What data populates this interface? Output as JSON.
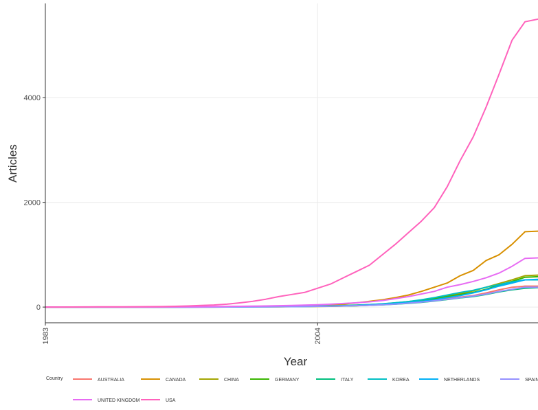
{
  "chart_data": {
    "type": "line",
    "title": "",
    "xlabel": "Year",
    "ylabel": "Articles",
    "xlim": [
      1983,
      2021
    ],
    "ylim": [
      -300,
      5800
    ],
    "x_ticks": [
      1983,
      2004
    ],
    "y_ticks": [
      0,
      2000,
      4000
    ],
    "grid": true,
    "legend_title": "Country",
    "legend_position": "bottom",
    "x": [
      1983,
      1984,
      1985,
      1986,
      1987,
      1988,
      1989,
      1990,
      1991,
      1992,
      1993,
      1994,
      1995,
      1996,
      1997,
      1998,
      1999,
      2000,
      2001,
      2002,
      2003,
      2004,
      2005,
      2006,
      2007,
      2008,
      2009,
      2010,
      2011,
      2012,
      2013,
      2014,
      2015,
      2016,
      2017,
      2018,
      2019,
      2020,
      2021
    ],
    "series": [
      {
        "name": "AUSTRALIA",
        "color": "#F8766D",
        "values": [
          0,
          0,
          0,
          0,
          0,
          0,
          0,
          0,
          0,
          0,
          1,
          2,
          3,
          4,
          5,
          6,
          8,
          10,
          12,
          15,
          18,
          22,
          26,
          30,
          35,
          45,
          55,
          70,
          85,
          100,
          130,
          160,
          190,
          220,
          270,
          330,
          380,
          400,
          400
        ]
      },
      {
        "name": "CANADA",
        "color": "#D89000",
        "values": [
          0,
          0,
          0,
          0,
          0,
          0,
          0,
          0,
          0,
          1,
          2,
          3,
          5,
          7,
          9,
          11,
          14,
          17,
          20,
          25,
          30,
          35,
          45,
          60,
          80,
          110,
          140,
          180,
          230,
          300,
          380,
          460,
          600,
          700,
          890,
          1000,
          1200,
          1440,
          1450
        ]
      },
      {
        "name": "CHINA",
        "color": "#A3A500",
        "values": [
          0,
          0,
          0,
          0,
          0,
          0,
          0,
          0,
          0,
          0,
          0,
          0,
          1,
          1,
          2,
          3,
          4,
          5,
          6,
          8,
          10,
          12,
          15,
          20,
          25,
          35,
          50,
          70,
          95,
          130,
          170,
          210,
          260,
          310,
          380,
          450,
          520,
          600,
          610
        ]
      },
      {
        "name": "GERMANY",
        "color": "#39B600",
        "values": [
          0,
          0,
          0,
          0,
          0,
          0,
          0,
          0,
          0,
          0,
          1,
          2,
          3,
          4,
          5,
          6,
          8,
          10,
          12,
          14,
          17,
          20,
          25,
          30,
          38,
          48,
          60,
          80,
          105,
          130,
          160,
          200,
          240,
          280,
          340,
          420,
          490,
          570,
          580
        ]
      },
      {
        "name": "ITALY",
        "color": "#00BF7D",
        "values": [
          0,
          0,
          0,
          0,
          0,
          0,
          0,
          0,
          0,
          0,
          1,
          1,
          2,
          3,
          4,
          5,
          6,
          7,
          9,
          11,
          13,
          15,
          18,
          22,
          27,
          34,
          42,
          55,
          70,
          90,
          115,
          145,
          175,
          200,
          240,
          290,
          330,
          360,
          370
        ]
      },
      {
        "name": "KOREA",
        "color": "#00BFC4",
        "values": [
          0,
          0,
          0,
          0,
          0,
          0,
          0,
          0,
          0,
          0,
          0,
          0,
          1,
          1,
          2,
          3,
          4,
          5,
          7,
          9,
          12,
          15,
          20,
          27,
          35,
          47,
          62,
          82,
          105,
          140,
          180,
          230,
          280,
          320,
          380,
          430,
          480,
          520,
          520
        ]
      },
      {
        "name": "NETHERLANDS",
        "color": "#00B0F6",
        "values": [
          0,
          0,
          0,
          0,
          0,
          0,
          0,
          0,
          0,
          0,
          1,
          1,
          2,
          3,
          4,
          5,
          6,
          8,
          10,
          12,
          15,
          18,
          22,
          27,
          33,
          42,
          52,
          68,
          85,
          110,
          140,
          180,
          220,
          270,
          330,
          400,
          460,
          520,
          530
        ]
      },
      {
        "name": "SPAIN",
        "color": "#9590FF",
        "values": [
          0,
          0,
          0,
          0,
          0,
          0,
          0,
          0,
          0,
          0,
          0,
          1,
          1,
          2,
          3,
          4,
          5,
          6,
          8,
          10,
          12,
          15,
          18,
          22,
          28,
          35,
          45,
          58,
          75,
          95,
          120,
          150,
          180,
          210,
          250,
          300,
          340,
          380,
          380
        ]
      },
      {
        "name": "UNITED KINGDOM",
        "color": "#E76BF3",
        "values": [
          0,
          0,
          0,
          0,
          0,
          0,
          0,
          1,
          1,
          2,
          3,
          5,
          7,
          9,
          12,
          15,
          18,
          22,
          27,
          32,
          38,
          45,
          55,
          68,
          82,
          100,
          125,
          160,
          200,
          250,
          300,
          380,
          430,
          490,
          560,
          650,
          780,
          930,
          940
        ]
      },
      {
        "name": "USA",
        "color": "#FF62BC",
        "values": [
          0,
          1,
          2,
          3,
          4,
          5,
          6,
          7,
          8,
          10,
          15,
          22,
          30,
          40,
          55,
          80,
          110,
          150,
          200,
          240,
          280,
          360,
          440,
          560,
          680,
          800,
          1000,
          1200,
          1420,
          1640,
          1900,
          2300,
          2800,
          3250,
          3820,
          4450,
          5100,
          5450,
          5500
        ]
      }
    ]
  }
}
